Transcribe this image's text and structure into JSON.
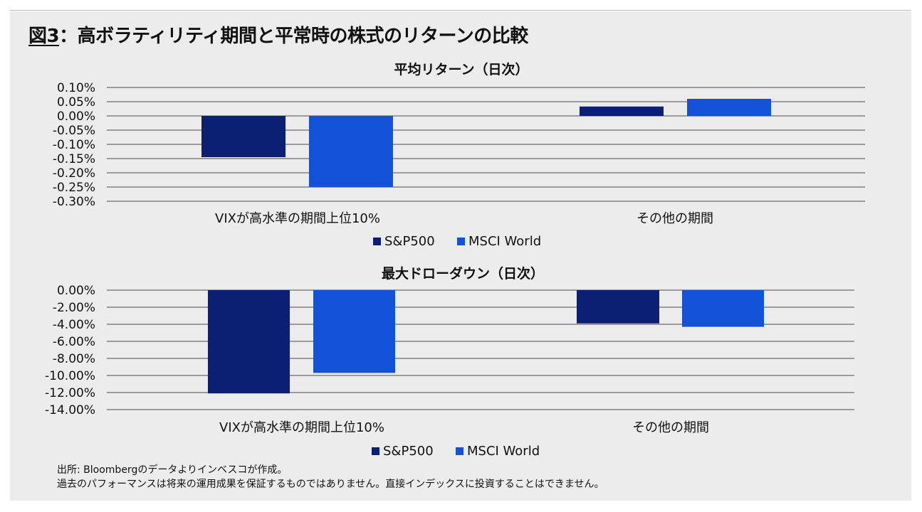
{
  "figure": {
    "title_number": "図3",
    "title_sep": "：",
    "title_text": "高ボラティリティ期間と平常時の株式のリターンの比較"
  },
  "colors": {
    "sp500": "#0b1f73",
    "msci": "#1352d6",
    "panel_bg": "#ececec",
    "grid": "#4a4a4a"
  },
  "chart_data": [
    {
      "type": "bar",
      "title": "平均リターン（日次）",
      "categories": [
        "VIXが高水準の期間上位10%",
        "その他の期間"
      ],
      "series": [
        {
          "name": "S&P500",
          "values": [
            -0.145,
            0.033
          ]
        },
        {
          "name": "MSCI World",
          "values": [
            -0.25,
            0.06
          ]
        }
      ],
      "ylim": [
        -0.3,
        0.1
      ],
      "ticks": [
        0.1,
        0.05,
        0.0,
        -0.05,
        -0.1,
        -0.15,
        -0.2,
        -0.25,
        -0.3
      ],
      "tick_labels": [
        "0.10%",
        "0.05%",
        "0.00%",
        "-0.05%",
        "-0.10%",
        "-0.15%",
        "-0.20%",
        "-0.25%",
        "-0.30%"
      ],
      "xlabel": "",
      "ylabel": "",
      "grid": true,
      "legend": "bottom-center"
    },
    {
      "type": "bar",
      "title": "最大ドローダウン（日次）",
      "categories": [
        "VIXが高水準の期間上位10%",
        "その他の期間"
      ],
      "series": [
        {
          "name": "S&P500",
          "values": [
            -12.1,
            -3.9
          ]
        },
        {
          "name": "MSCI World",
          "values": [
            -9.7,
            -4.3
          ]
        }
      ],
      "ylim": [
        -14.0,
        0.0
      ],
      "ticks": [
        0,
        -2,
        -4,
        -6,
        -8,
        -10,
        -12,
        -14
      ],
      "tick_labels": [
        "0.00%",
        "-2.00%",
        "-4.00%",
        "-6.00%",
        "-8.00%",
        "-10.00%",
        "-12.00%",
        "-14.00%"
      ],
      "xlabel": "",
      "ylabel": "",
      "grid": true,
      "legend": "bottom-center"
    }
  ],
  "footnotes": {
    "source": "出所: Bloombergのデータよりインベスコが作成。",
    "disclaimer": "過去のパフォーマンスは将来の運用成果を保証するものではありません。直接インデックスに投資することはできません。"
  }
}
